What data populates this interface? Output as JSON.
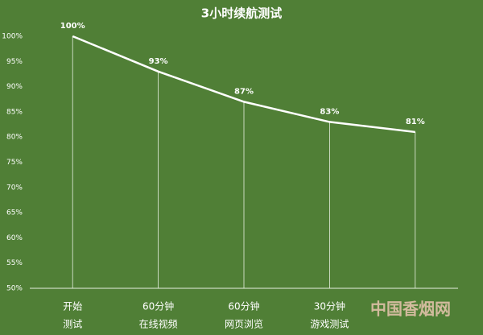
{
  "chart_data": {
    "type": "line",
    "title": "3小时续航测试",
    "categories": [
      [
        "开始",
        "测试"
      ],
      [
        "60分钟",
        "在线视频"
      ],
      [
        "60分钟",
        "网页浏览"
      ],
      [
        "30分钟",
        "游戏测试"
      ],
      null
    ],
    "values": [
      100,
      93,
      87,
      83,
      81
    ],
    "value_labels": [
      "100%",
      "93%",
      "87%",
      "83%",
      "81%"
    ],
    "color": "#ffffff",
    "ylim": [
      50,
      100
    ],
    "yticks": [
      {
        "value": 50,
        "label": "50%"
      },
      {
        "value": 55,
        "label": "55%"
      },
      {
        "value": 60,
        "label": "60%"
      },
      {
        "value": 65,
        "label": "65%"
      },
      {
        "value": 70,
        "label": "70%"
      },
      {
        "value": 75,
        "label": "75%"
      },
      {
        "value": 80,
        "label": "80%"
      },
      {
        "value": 85,
        "label": "85%"
      },
      {
        "value": 90,
        "label": "90%"
      },
      {
        "value": 95,
        "label": "95%"
      },
      {
        "value": 100,
        "label": "100%"
      }
    ],
    "grid": false,
    "watermark": "中国香烟网"
  }
}
